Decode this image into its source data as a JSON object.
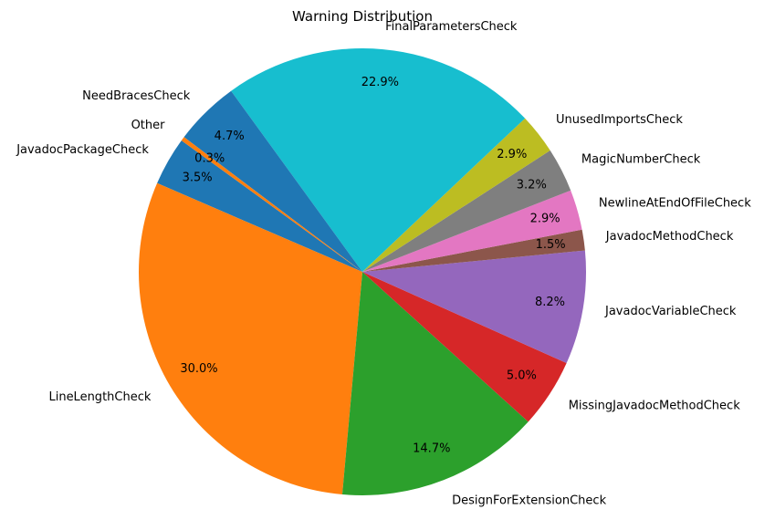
{
  "chart_data": {
    "type": "pie",
    "title": "Warning Distribution",
    "start_angle_deg": 144,
    "direction": "counterclockwise",
    "slices": [
      {
        "label": "JavadocPackageCheck",
        "value": 3.5,
        "pct_label": "3.5%",
        "color": "#1f77b4"
      },
      {
        "label": "LineLengthCheck",
        "value": 30.0,
        "pct_label": "30.0%",
        "color": "#ff7f0e"
      },
      {
        "label": "DesignForExtensionCheck",
        "value": 14.7,
        "pct_label": "14.7%",
        "color": "#2ca02c"
      },
      {
        "label": "MissingJavadocMethodCheck",
        "value": 5.0,
        "pct_label": "5.0%",
        "color": "#d62728"
      },
      {
        "label": "JavadocVariableCheck",
        "value": 8.2,
        "pct_label": "8.2%",
        "color": "#9467bd"
      },
      {
        "label": "JavadocMethodCheck",
        "value": 1.5,
        "pct_label": "1.5%",
        "color": "#8c564b"
      },
      {
        "label": "NewlineAtEndOfFileCheck",
        "value": 2.9,
        "pct_label": "2.9%",
        "color": "#e377c2"
      },
      {
        "label": "MagicNumberCheck",
        "value": 3.2,
        "pct_label": "3.2%",
        "color": "#7f7f7f"
      },
      {
        "label": "UnusedImportsCheck",
        "value": 2.9,
        "pct_label": "2.9%",
        "color": "#bcbd22"
      },
      {
        "label": "FinalParametersCheck",
        "value": 22.9,
        "pct_label": "22.9%",
        "color": "#17becf"
      },
      {
        "label": "NeedBracesCheck",
        "value": 4.7,
        "pct_label": "4.7%",
        "color": "#1f77b4"
      },
      {
        "label": "Other",
        "value": 0.3,
        "pct_label": "0.3%",
        "color": "#ff7f0e"
      }
    ]
  }
}
